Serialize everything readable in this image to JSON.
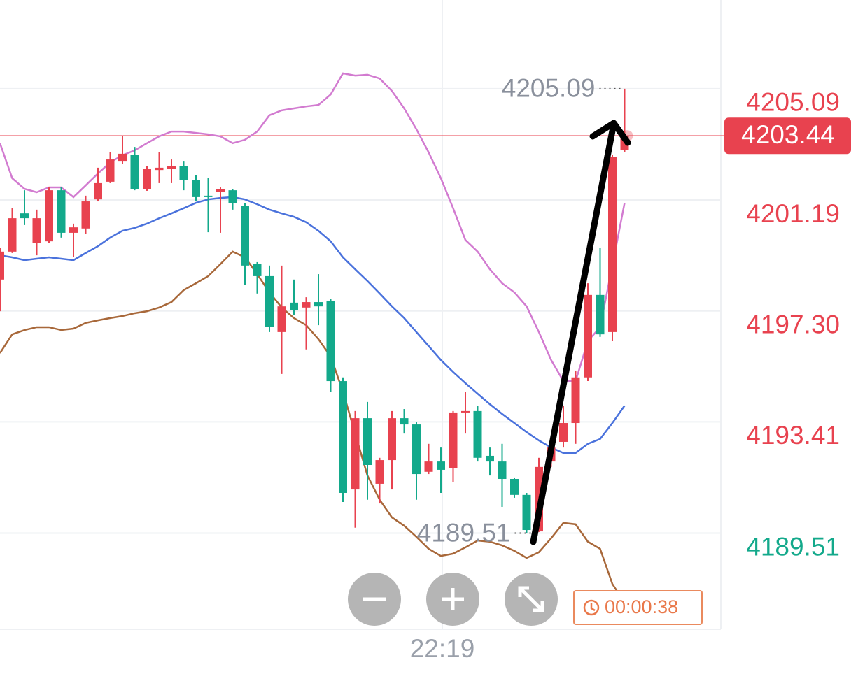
{
  "chart_data": {
    "type": "candlestick",
    "categories": [
      null,
      null,
      null,
      null,
      null,
      null,
      null,
      null,
      null,
      null,
      null,
      null,
      null,
      null,
      null,
      null,
      null,
      null,
      null,
      null,
      null,
      null,
      null,
      null,
      null,
      null,
      null,
      null,
      null,
      null,
      null,
      null,
      null,
      null,
      null,
      null,
      "22:19",
      null,
      null,
      null,
      null,
      null,
      null,
      null,
      null,
      null,
      null,
      null,
      null,
      null,
      null,
      null
    ],
    "open": [
      4198.4,
      4199.38,
      4200.72,
      4199.67,
      4199.74,
      4201.53,
      4200.04,
      4200.19,
      4201.21,
      4201.83,
      4202.56,
      4202.76,
      4201.58,
      4202.24,
      4202.27,
      4202.37,
      4201.9,
      4201.34,
      4201.46,
      4201.53,
      4200.97,
      4198.94,
      4198.52,
      4196.56,
      4197.59,
      4197.42,
      4197.61,
      4197.66,
      4194.84,
      4191.04,
      4193.54,
      4191.24,
      4192.07,
      4193.54,
      4193.32,
      4191.66,
      4192.02,
      4191.78,
      4193.74,
      4193.79,
      4192.22,
      4192.02,
      4191.41,
      4190.85,
      4189.57,
      4192.02,
      4192.71,
      4193.37,
      4194.97,
      4197.86,
      4196.56,
      4202.93
    ],
    "high": [
      4199.5,
      4200.9,
      4201.53,
      4200.85,
      4201.63,
      4201.63,
      4200.36,
      4201.34,
      4202.32,
      4202.86,
      4203.42,
      4203.05,
      4202.37,
      4202.86,
      4202.61,
      4202.56,
      4202.07,
      4201.95,
      4201.63,
      4201.58,
      4201.09,
      4199.01,
      4198.89,
      4198.89,
      4198.4,
      4197.78,
      4198.59,
      4197.71,
      4194.97,
      4193.79,
      4194.11,
      4192.15,
      4193.79,
      4193.86,
      4193.42,
      4192.64,
      4192.51,
      4193.79,
      4194.47,
      4193.98,
      4192.51,
      4192.64,
      4191.46,
      4190.92,
      4192.15,
      4192.64,
      4193.98,
      4195.21,
      4198.27,
      4199.5,
      4202.76,
      4205.09
    ],
    "low": [
      4197.29,
      4199.33,
      4200.31,
      4199.25,
      4199.67,
      4199.87,
      4199.18,
      4199.99,
      4201.14,
      4201.78,
      4202.44,
      4201.53,
      4201.51,
      4201.78,
      4201.78,
      4201.53,
      4201.14,
      4200.06,
      4200.04,
      4200.85,
      4198.2,
      4197.91,
      4196.56,
      4195.09,
      4197.17,
      4195.95,
      4196.8,
      4194.47,
      4190.6,
      4189.7,
      4190.68,
      4190.55,
      4191.04,
      4193.0,
      4190.68,
      4191.58,
      4190.92,
      4191.29,
      4193.0,
      4192.02,
      4191.53,
      4190.43,
      4190.75,
      4189.51,
      4189.55,
      4191.83,
      4192.51,
      4192.64,
      4194.84,
      4196.39,
      4196.24,
      4202.86
    ],
    "close": [
      4199.38,
      4200.55,
      4200.55,
      4200.55,
      4201.53,
      4200.04,
      4200.23,
      4201.14,
      4201.78,
      4202.61,
      4202.81,
      4201.58,
      4202.27,
      4202.32,
      4202.37,
      4201.9,
      4201.29,
      4201.29,
      4201.58,
      4201.09,
      4198.89,
      4198.52,
      4196.73,
      4197.46,
      4197.34,
      4197.61,
      4197.46,
      4194.84,
      4190.92,
      4193.54,
      4191.9,
      4192.07,
      4193.54,
      4193.32,
      4191.58,
      4192.02,
      4191.73,
      4193.74,
      4193.79,
      4192.15,
      4192.02,
      4191.41,
      4190.85,
      4189.62,
      4191.83,
      4192.51,
      4193.37,
      4194.97,
      4197.86,
      4196.48,
      4202.69,
      4203.44
    ],
    "up_color": "#e8424f",
    "down_color": "#13a98b",
    "overlays": [
      {
        "color": "#d27bd0",
        "values": [
          4203.18,
          4201.95,
          4201.58,
          4201.46,
          4201.63,
          4201.63,
          4201.29,
          4201.7,
          4202.12,
          4202.51,
          4202.76,
          4202.93,
          4203.18,
          4203.42,
          4203.59,
          4203.59,
          4203.54,
          4203.49,
          4203.42,
          4203.18,
          4203.3,
          4203.59,
          4204.16,
          4204.33,
          4204.4,
          4204.47,
          4204.52,
          4204.89,
          4205.63,
          4205.55,
          4205.58,
          4205.45,
          4205.01,
          4204.4,
          4203.67,
          4202.86,
          4201.95,
          4200.9,
          4199.79,
          4199.38,
          4198.76,
          4198.27,
          4197.95,
          4197.46,
          4196.56,
          4195.58,
          4194.84,
          4194.84,
          4196.24,
          4196.73,
          4198.89,
          4201.09
        ]
      },
      {
        "color": "#4a72dc",
        "values": [
          4199.25,
          4199.18,
          4199.08,
          4199.13,
          4199.18,
          4199.13,
          4199.08,
          4199.33,
          4199.57,
          4199.87,
          4200.11,
          4200.21,
          4200.36,
          4200.55,
          4200.72,
          4200.9,
          4201.09,
          4201.21,
          4201.26,
          4201.29,
          4201.21,
          4201.04,
          4200.85,
          4200.72,
          4200.6,
          4200.41,
          4200.11,
          4199.74,
          4199.18,
          4198.76,
          4198.35,
          4197.91,
          4197.46,
          4197.05,
          4196.56,
          4196.07,
          4195.58,
          4195.16,
          4194.77,
          4194.4,
          4194.03,
          4193.69,
          4193.37,
          4193.05,
          4192.76,
          4192.51,
          4192.32,
          4192.32,
          4192.64,
          4192.81,
          4193.37,
          4193.98
        ]
      },
      {
        "color": "#a8683a",
        "values": [
          4195.82,
          4196.48,
          4196.63,
          4196.73,
          4196.73,
          4196.63,
          4196.68,
          4196.88,
          4196.97,
          4197.05,
          4197.12,
          4197.22,
          4197.29,
          4197.42,
          4197.61,
          4198.03,
          4198.27,
          4198.52,
          4198.94,
          4199.38,
          4199.18,
          4198.59,
          4197.95,
          4197.42,
          4197.05,
          4196.8,
          4196.31,
          4195.7,
          4194.47,
          4193.0,
          4191.53,
          4190.68,
          4190.06,
          4189.77,
          4189.38,
          4188.96,
          4188.71,
          4188.79,
          4189.01,
          4189.25,
          4189.21,
          4189.08,
          4188.89,
          4188.64,
          4188.84,
          4189.33,
          4189.87,
          4189.82,
          4189.21,
          4188.96,
          4187.73,
          4187.07
        ]
      }
    ],
    "ylim": [
      4186.14,
      4208.2
    ],
    "yticks": [
      4205.09,
      4201.19,
      {
        "value": 4197.3,
        "label": "4197.30"
      },
      4193.41,
      4189.51
    ],
    "ytick_colors": [
      "#e8424f",
      "#e8424f",
      "#e8424f",
      "#e8424f",
      "#13a98b"
    ],
    "grid": true,
    "countdown": "00:00:38"
  }
}
